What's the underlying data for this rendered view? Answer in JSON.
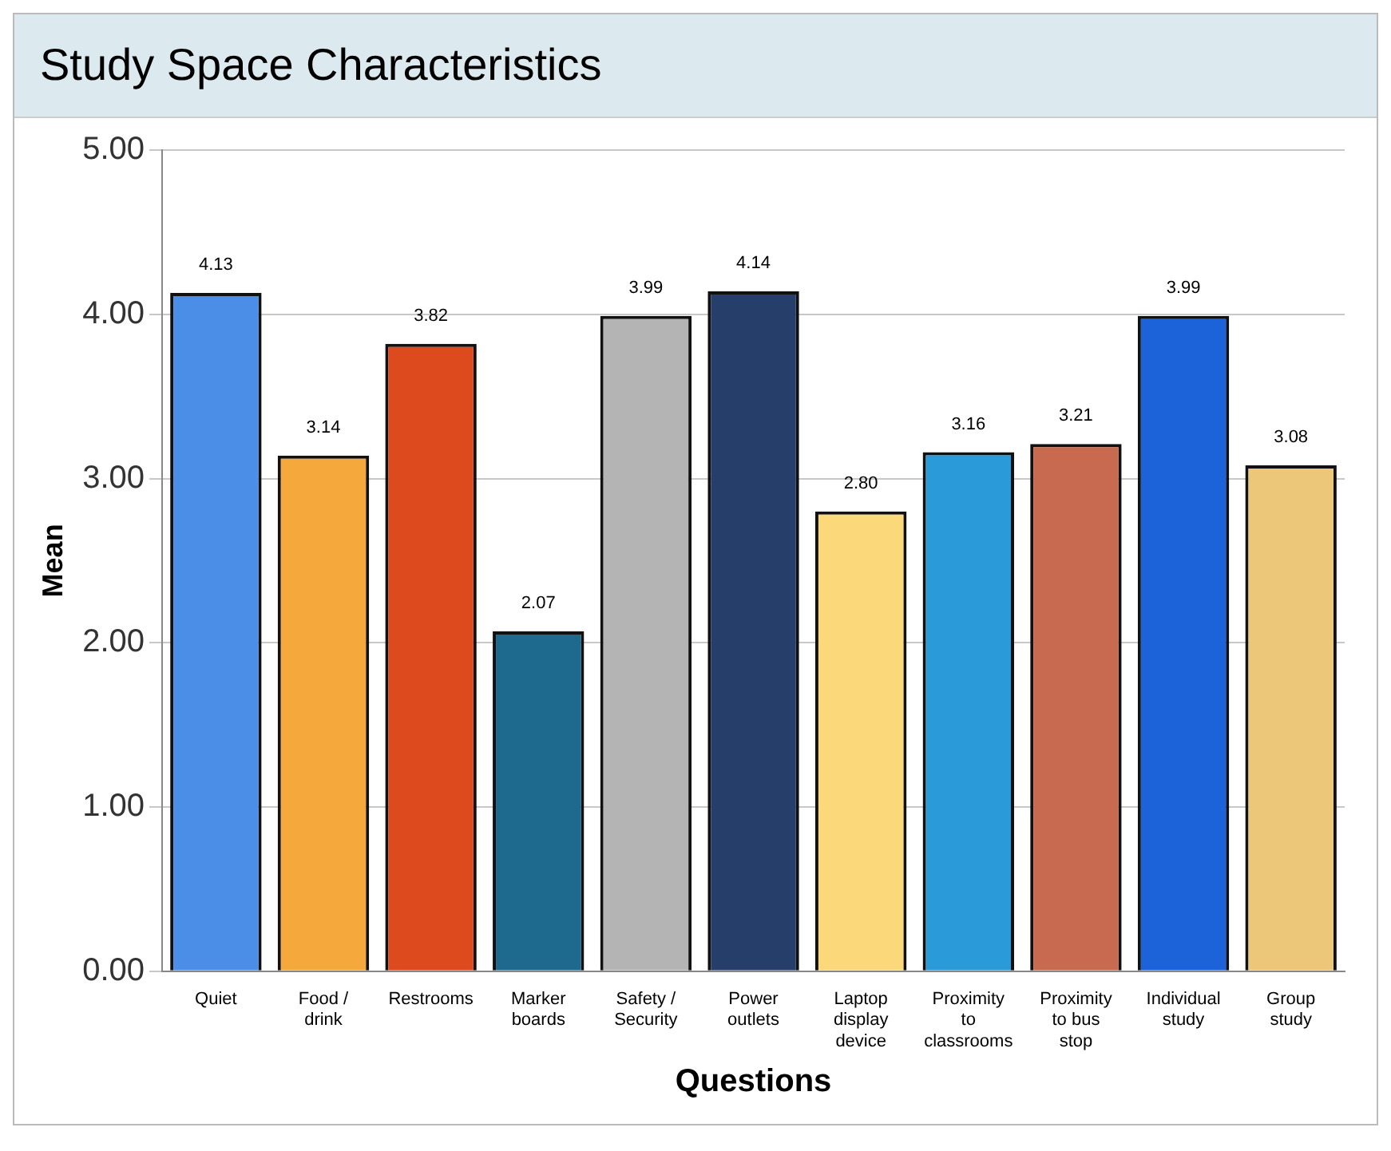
{
  "chart_data": {
    "type": "bar",
    "title": "Study Space Characteristics",
    "xlabel": "Questions",
    "ylabel": "Mean",
    "categories": [
      "Quiet",
      "Food / drink",
      "Restrooms",
      "Marker boards",
      "Safety / Security",
      "Power outlets",
      "Laptop display device",
      "Proximity to classrooms",
      "Proximity to bus stop",
      "Individual study",
      "Group study"
    ],
    "values": [
      4.13,
      3.14,
      3.82,
      2.07,
      3.99,
      4.14,
      2.8,
      3.16,
      3.21,
      3.99,
      3.08
    ],
    "value_labels": [
      "4.13",
      "3.14",
      "3.82",
      "2.07",
      "3.99",
      "4.14",
      "2.80",
      "3.16",
      "3.21",
      "3.99",
      "3.08"
    ],
    "colors": [
      "#4a8ee8",
      "#f5a83c",
      "#dc4a1e",
      "#1d6a8e",
      "#b4b4b4",
      "#253f6a",
      "#fbd97a",
      "#2a9ad8",
      "#c86a50",
      "#1c62d8",
      "#ecc77a"
    ],
    "ylim": [
      0,
      5
    ],
    "yticks": [
      {
        "value": 0,
        "label": "0.00"
      },
      {
        "value": 1,
        "label": "1.00"
      },
      {
        "value": 2,
        "label": "2.00"
      },
      {
        "value": 3,
        "label": "3.00"
      },
      {
        "value": 4,
        "label": "4.00"
      },
      {
        "value": 5,
        "label": "5.00"
      }
    ],
    "grid": "y",
    "legend": false
  }
}
